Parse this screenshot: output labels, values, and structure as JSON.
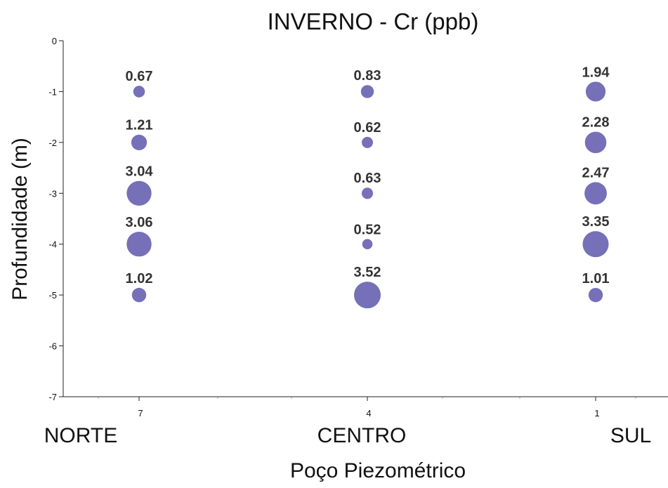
{
  "chart_data": {
    "type": "scatter",
    "title": "INVERNO - Cr (ppb)",
    "xlabel": "Poço Piezométrico",
    "ylabel": "Profundidade (m)",
    "ylim": [
      -7,
      0
    ],
    "yticks": [
      0,
      -1,
      -2,
      -3,
      -4,
      -5,
      -6,
      -7
    ],
    "categories": [
      "NORTE",
      "CENTRO",
      "SUL"
    ],
    "x_tick_labels": [
      "7",
      "4",
      "1"
    ],
    "marker_color": "#7570b8",
    "grid": false,
    "points": [
      {
        "category": "NORTE",
        "depth": -1,
        "value": 0.67
      },
      {
        "category": "NORTE",
        "depth": -2,
        "value": 1.21
      },
      {
        "category": "NORTE",
        "depth": -3,
        "value": 3.04
      },
      {
        "category": "NORTE",
        "depth": -4,
        "value": 3.06
      },
      {
        "category": "NORTE",
        "depth": -5,
        "value": 1.02
      },
      {
        "category": "CENTRO",
        "depth": -1,
        "value": 0.83
      },
      {
        "category": "CENTRO",
        "depth": -2,
        "value": 0.62
      },
      {
        "category": "CENTRO",
        "depth": -3,
        "value": 0.63
      },
      {
        "category": "CENTRO",
        "depth": -4,
        "value": 0.52
      },
      {
        "category": "CENTRO",
        "depth": -5,
        "value": 3.52
      },
      {
        "category": "SUL",
        "depth": -1,
        "value": 1.94
      },
      {
        "category": "SUL",
        "depth": -2,
        "value": 2.28
      },
      {
        "category": "SUL",
        "depth": -3,
        "value": 2.47
      },
      {
        "category": "SUL",
        "depth": -4,
        "value": 3.35
      },
      {
        "category": "SUL",
        "depth": -5,
        "value": 1.01
      }
    ]
  }
}
